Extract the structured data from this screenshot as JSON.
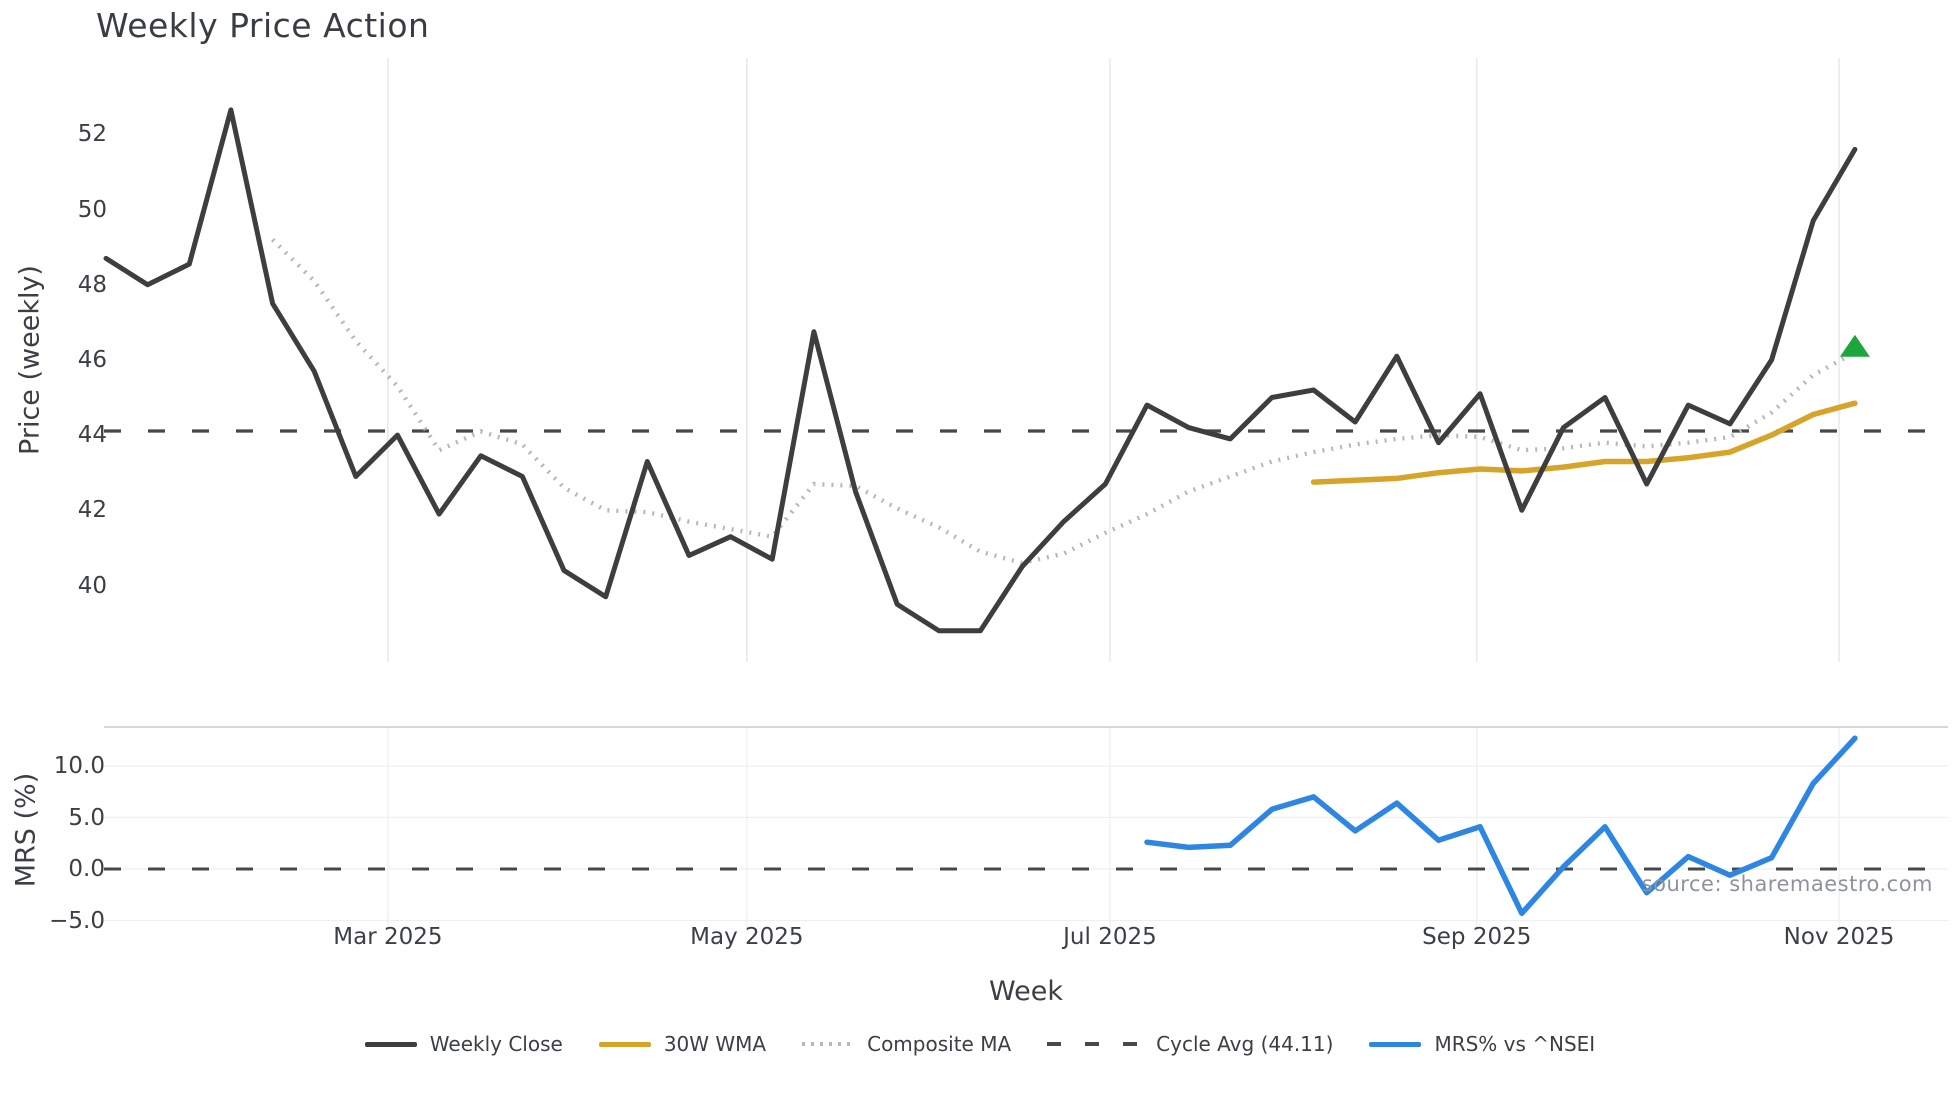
{
  "title": "Weekly Price Action",
  "axes": {
    "price_label": "Price (weekly)",
    "mrs_label": "MRS (%)",
    "week_label": "Week",
    "price_ticks": [
      52,
      50,
      48,
      46,
      44,
      42,
      40
    ],
    "mrs_ticks": [
      {
        "value": 10,
        "label": "10.0"
      },
      {
        "value": 5,
        "label": "5.0"
      },
      {
        "value": 0,
        "label": "0.0"
      },
      {
        "value": -5,
        "label": "−5.0"
      }
    ],
    "x_ticks": [
      {
        "week": 6.77,
        "label": "Mar 2025"
      },
      {
        "week": 15.39,
        "label": "May 2025"
      },
      {
        "week": 24.11,
        "label": "Jul 2025"
      },
      {
        "week": 32.92,
        "label": "Sep 2025"
      },
      {
        "week": 41.62,
        "label": "Nov 2025"
      }
    ]
  },
  "watermark": "source: sharemaestro.com",
  "legend": [
    {
      "label": "Weekly Close",
      "style": "solid",
      "color": "#3e3e3e"
    },
    {
      "label": "30W WMA",
      "style": "solid",
      "color": "#d6a428"
    },
    {
      "label": "Composite MA",
      "style": "dotted",
      "color": "#b7b7b7"
    },
    {
      "label": "Cycle Avg (44.11)",
      "style": "dashed",
      "color": "#46484c"
    },
    {
      "label": "MRS% vs ^NSEI",
      "style": "solid",
      "color": "#2d87e2"
    }
  ],
  "colors": {
    "weekly_close": "#3e3e3e",
    "wma": "#d6a428",
    "composite_ma": "#b7b7b7",
    "cycle_avg": "#46484c",
    "mrs": "#2d87e2",
    "signal_marker": "#1ca63d",
    "grid": "#e8eaed",
    "grid_light": "#edeff2",
    "panel_border": "#c9ccd0",
    "text": "#3c4046"
  },
  "chart_data": [
    {
      "type": "line",
      "panel": "price",
      "title": "Weekly Price Action",
      "xlabel": "Week",
      "ylabel": "Price (weekly)",
      "ylim": [
        38.0,
        54.0
      ],
      "x_unit": "weekly points, Jan 2025 through Nov 2025",
      "grid": "vertical only",
      "series": [
        {
          "name": "Weekly Close",
          "start_week": 0,
          "values": [
            48.7,
            48.0,
            48.55,
            52.65,
            47.5,
            45.7,
            42.9,
            44.0,
            41.9,
            43.45,
            42.9,
            40.4,
            39.7,
            43.3,
            40.8,
            41.3,
            40.7,
            46.75,
            42.5,
            39.5,
            38.8,
            38.8,
            40.5,
            41.7,
            42.7,
            44.8,
            44.2,
            43.9,
            45.0,
            45.2,
            44.35,
            46.1,
            43.8,
            45.1,
            42.0,
            44.2,
            45.0,
            42.7,
            44.8,
            44.3,
            46.0,
            49.7,
            51.6
          ]
        },
        {
          "name": "30W WMA",
          "start_week": 29,
          "values": [
            42.75,
            42.8,
            42.85,
            43.0,
            43.1,
            43.05,
            43.15,
            43.3,
            43.3,
            43.4,
            43.55,
            44.0,
            44.55,
            44.85
          ]
        },
        {
          "name": "Composite MA",
          "start_week": 4,
          "values": [
            49.2,
            48.1,
            46.5,
            45.3,
            43.6,
            44.1,
            43.75,
            42.6,
            42.0,
            41.95,
            41.7,
            41.5,
            41.3,
            42.7,
            42.65,
            42.05,
            41.55,
            40.9,
            40.6,
            40.85,
            41.4,
            41.9,
            42.5,
            42.9,
            43.3,
            43.55,
            43.75,
            43.9,
            44.0,
            43.95,
            43.6,
            43.65,
            43.8,
            43.7,
            43.8,
            43.95,
            44.6,
            45.6,
            46.2
          ]
        },
        {
          "name": "Cycle Avg (44.11)",
          "constant": 44.11
        }
      ],
      "markers": [
        {
          "name": "buy-signal-triangle",
          "shape": "triangle-up",
          "week": 42,
          "value": 46.35,
          "color": "#1ca63d"
        }
      ]
    },
    {
      "type": "line",
      "panel": "mrs",
      "ylabel": "MRS (%)",
      "ylim": [
        -6.0,
        14.0
      ],
      "grid": "horizontal",
      "series": [
        {
          "name": "MRS% vs ^NSEI",
          "start_week": 25,
          "values": [
            2.6,
            2.1,
            2.3,
            5.8,
            7.0,
            3.7,
            6.4,
            2.8,
            4.1,
            -4.3,
            0.2,
            4.1,
            -2.3,
            1.2,
            -0.6,
            1.1,
            8.3,
            12.7
          ]
        },
        {
          "name": "Zero Line",
          "constant": 0
        }
      ]
    }
  ]
}
